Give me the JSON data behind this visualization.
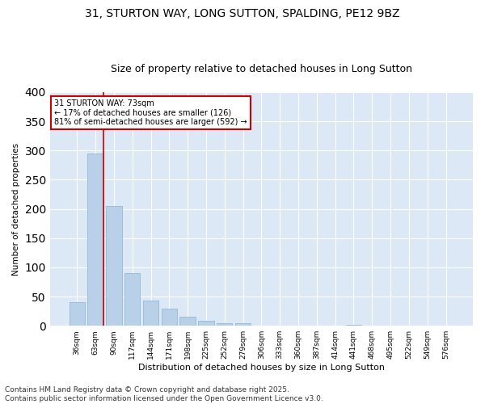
{
  "title_line1": "31, STURTON WAY, LONG SUTTON, SPALDING, PE12 9BZ",
  "title_line2": "Size of property relative to detached houses in Long Sutton",
  "xlabel": "Distribution of detached houses by size in Long Sutton",
  "ylabel": "Number of detached properties",
  "bar_labels": [
    "36sqm",
    "63sqm",
    "90sqm",
    "117sqm",
    "144sqm",
    "171sqm",
    "198sqm",
    "225sqm",
    "252sqm",
    "279sqm",
    "306sqm",
    "333sqm",
    "360sqm",
    "387sqm",
    "414sqm",
    "441sqm",
    "468sqm",
    "495sqm",
    "522sqm",
    "549sqm",
    "576sqm"
  ],
  "bar_values": [
    40,
    295,
    205,
    90,
    43,
    30,
    16,
    9,
    5,
    5,
    0,
    0,
    0,
    0,
    0,
    2,
    0,
    0,
    0,
    0,
    0
  ],
  "bar_color": "#b8d0e8",
  "bar_edge_color": "#8ab0d0",
  "background_color": "#dce8f5",
  "grid_color": "#ffffff",
  "annotation_text": "31 STURTON WAY: 73sqm\n← 17% of detached houses are smaller (126)\n81% of semi-detached houses are larger (592) →",
  "annotation_box_color": "#ffffff",
  "annotation_box_edge": "#cc0000",
  "vline_color": "#cc0000",
  "vline_x_index": 1,
  "ylim": [
    0,
    400
  ],
  "yticks": [
    0,
    50,
    100,
    150,
    200,
    250,
    300,
    350,
    400
  ],
  "footnote": "Contains HM Land Registry data © Crown copyright and database right 2025.\nContains public sector information licensed under the Open Government Licence v3.0.",
  "title_fontsize": 10,
  "subtitle_fontsize": 9,
  "footnote_fontsize": 6.5
}
